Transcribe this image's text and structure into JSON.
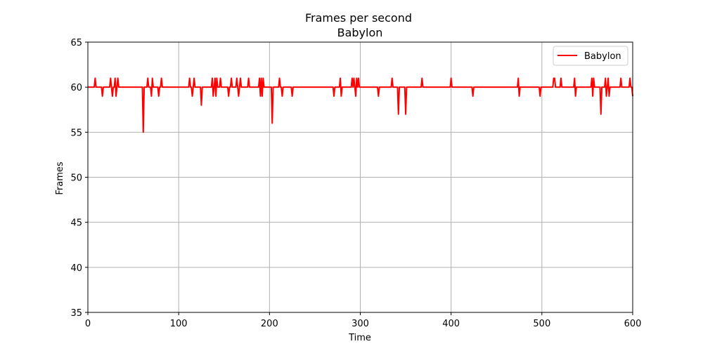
{
  "chart_data": {
    "type": "line",
    "title": "Frames per second",
    "subtitle": "Babylon",
    "xlabel": "Time",
    "ylabel": "Frames",
    "xlim": [
      0,
      600
    ],
    "ylim": [
      35,
      65
    ],
    "xticks": [
      0,
      100,
      200,
      300,
      400,
      500,
      600
    ],
    "yticks": [
      35,
      40,
      45,
      50,
      55,
      60,
      65
    ],
    "xtick_labels": [
      "0",
      "100",
      "200",
      "300",
      "400",
      "500",
      "600"
    ],
    "ytick_labels": [
      "35",
      "40",
      "45",
      "50",
      "55",
      "60",
      "65"
    ],
    "grid": true,
    "legend": {
      "placement": "top-right",
      "entries": [
        "Babylon"
      ]
    },
    "series": [
      {
        "name": "Babylon",
        "color": "#ff0000",
        "x_range": [
          0,
          600
        ],
        "baseline": 60,
        "deviations": [
          [
            8,
            61
          ],
          [
            16,
            59
          ],
          [
            25,
            61
          ],
          [
            27,
            59
          ],
          [
            30,
            61
          ],
          [
            31,
            59
          ],
          [
            33,
            61
          ],
          [
            61,
            55
          ],
          [
            66,
            61
          ],
          [
            70,
            59
          ],
          [
            71,
            61
          ],
          [
            78,
            59
          ],
          [
            81,
            61
          ],
          [
            112,
            61
          ],
          [
            115,
            59
          ],
          [
            117,
            61
          ],
          [
            125,
            58
          ],
          [
            137,
            61
          ],
          [
            138,
            59
          ],
          [
            140,
            61
          ],
          [
            141,
            59
          ],
          [
            142,
            61
          ],
          [
            146,
            61
          ],
          [
            155,
            59
          ],
          [
            158,
            61
          ],
          [
            164,
            61
          ],
          [
            166,
            59
          ],
          [
            168,
            61
          ],
          [
            177,
            61
          ],
          [
            189,
            61
          ],
          [
            190,
            59
          ],
          [
            191,
            61
          ],
          [
            192,
            59
          ],
          [
            193,
            61
          ],
          [
            203,
            56
          ],
          [
            211,
            61
          ],
          [
            214,
            59
          ],
          [
            225,
            59
          ],
          [
            271,
            59
          ],
          [
            278,
            61
          ],
          [
            279,
            59
          ],
          [
            291,
            61
          ],
          [
            293,
            61
          ],
          [
            295,
            59
          ],
          [
            296,
            61
          ],
          [
            298,
            61
          ],
          [
            320,
            59
          ],
          [
            335,
            61
          ],
          [
            342,
            57
          ],
          [
            350,
            57
          ],
          [
            368,
            61
          ],
          [
            400,
            61
          ],
          [
            424,
            59
          ],
          [
            474,
            61
          ],
          [
            475,
            59
          ],
          [
            498,
            59
          ],
          [
            513,
            61
          ],
          [
            514,
            61
          ],
          [
            521,
            61
          ],
          [
            536,
            61
          ],
          [
            537,
            59
          ],
          [
            555,
            61
          ],
          [
            556,
            59
          ],
          [
            557,
            61
          ],
          [
            565,
            57
          ],
          [
            570,
            61
          ],
          [
            571,
            59
          ],
          [
            573,
            61
          ],
          [
            574,
            59
          ],
          [
            587,
            61
          ],
          [
            597,
            61
          ],
          [
            600,
            59
          ]
        ]
      }
    ]
  }
}
